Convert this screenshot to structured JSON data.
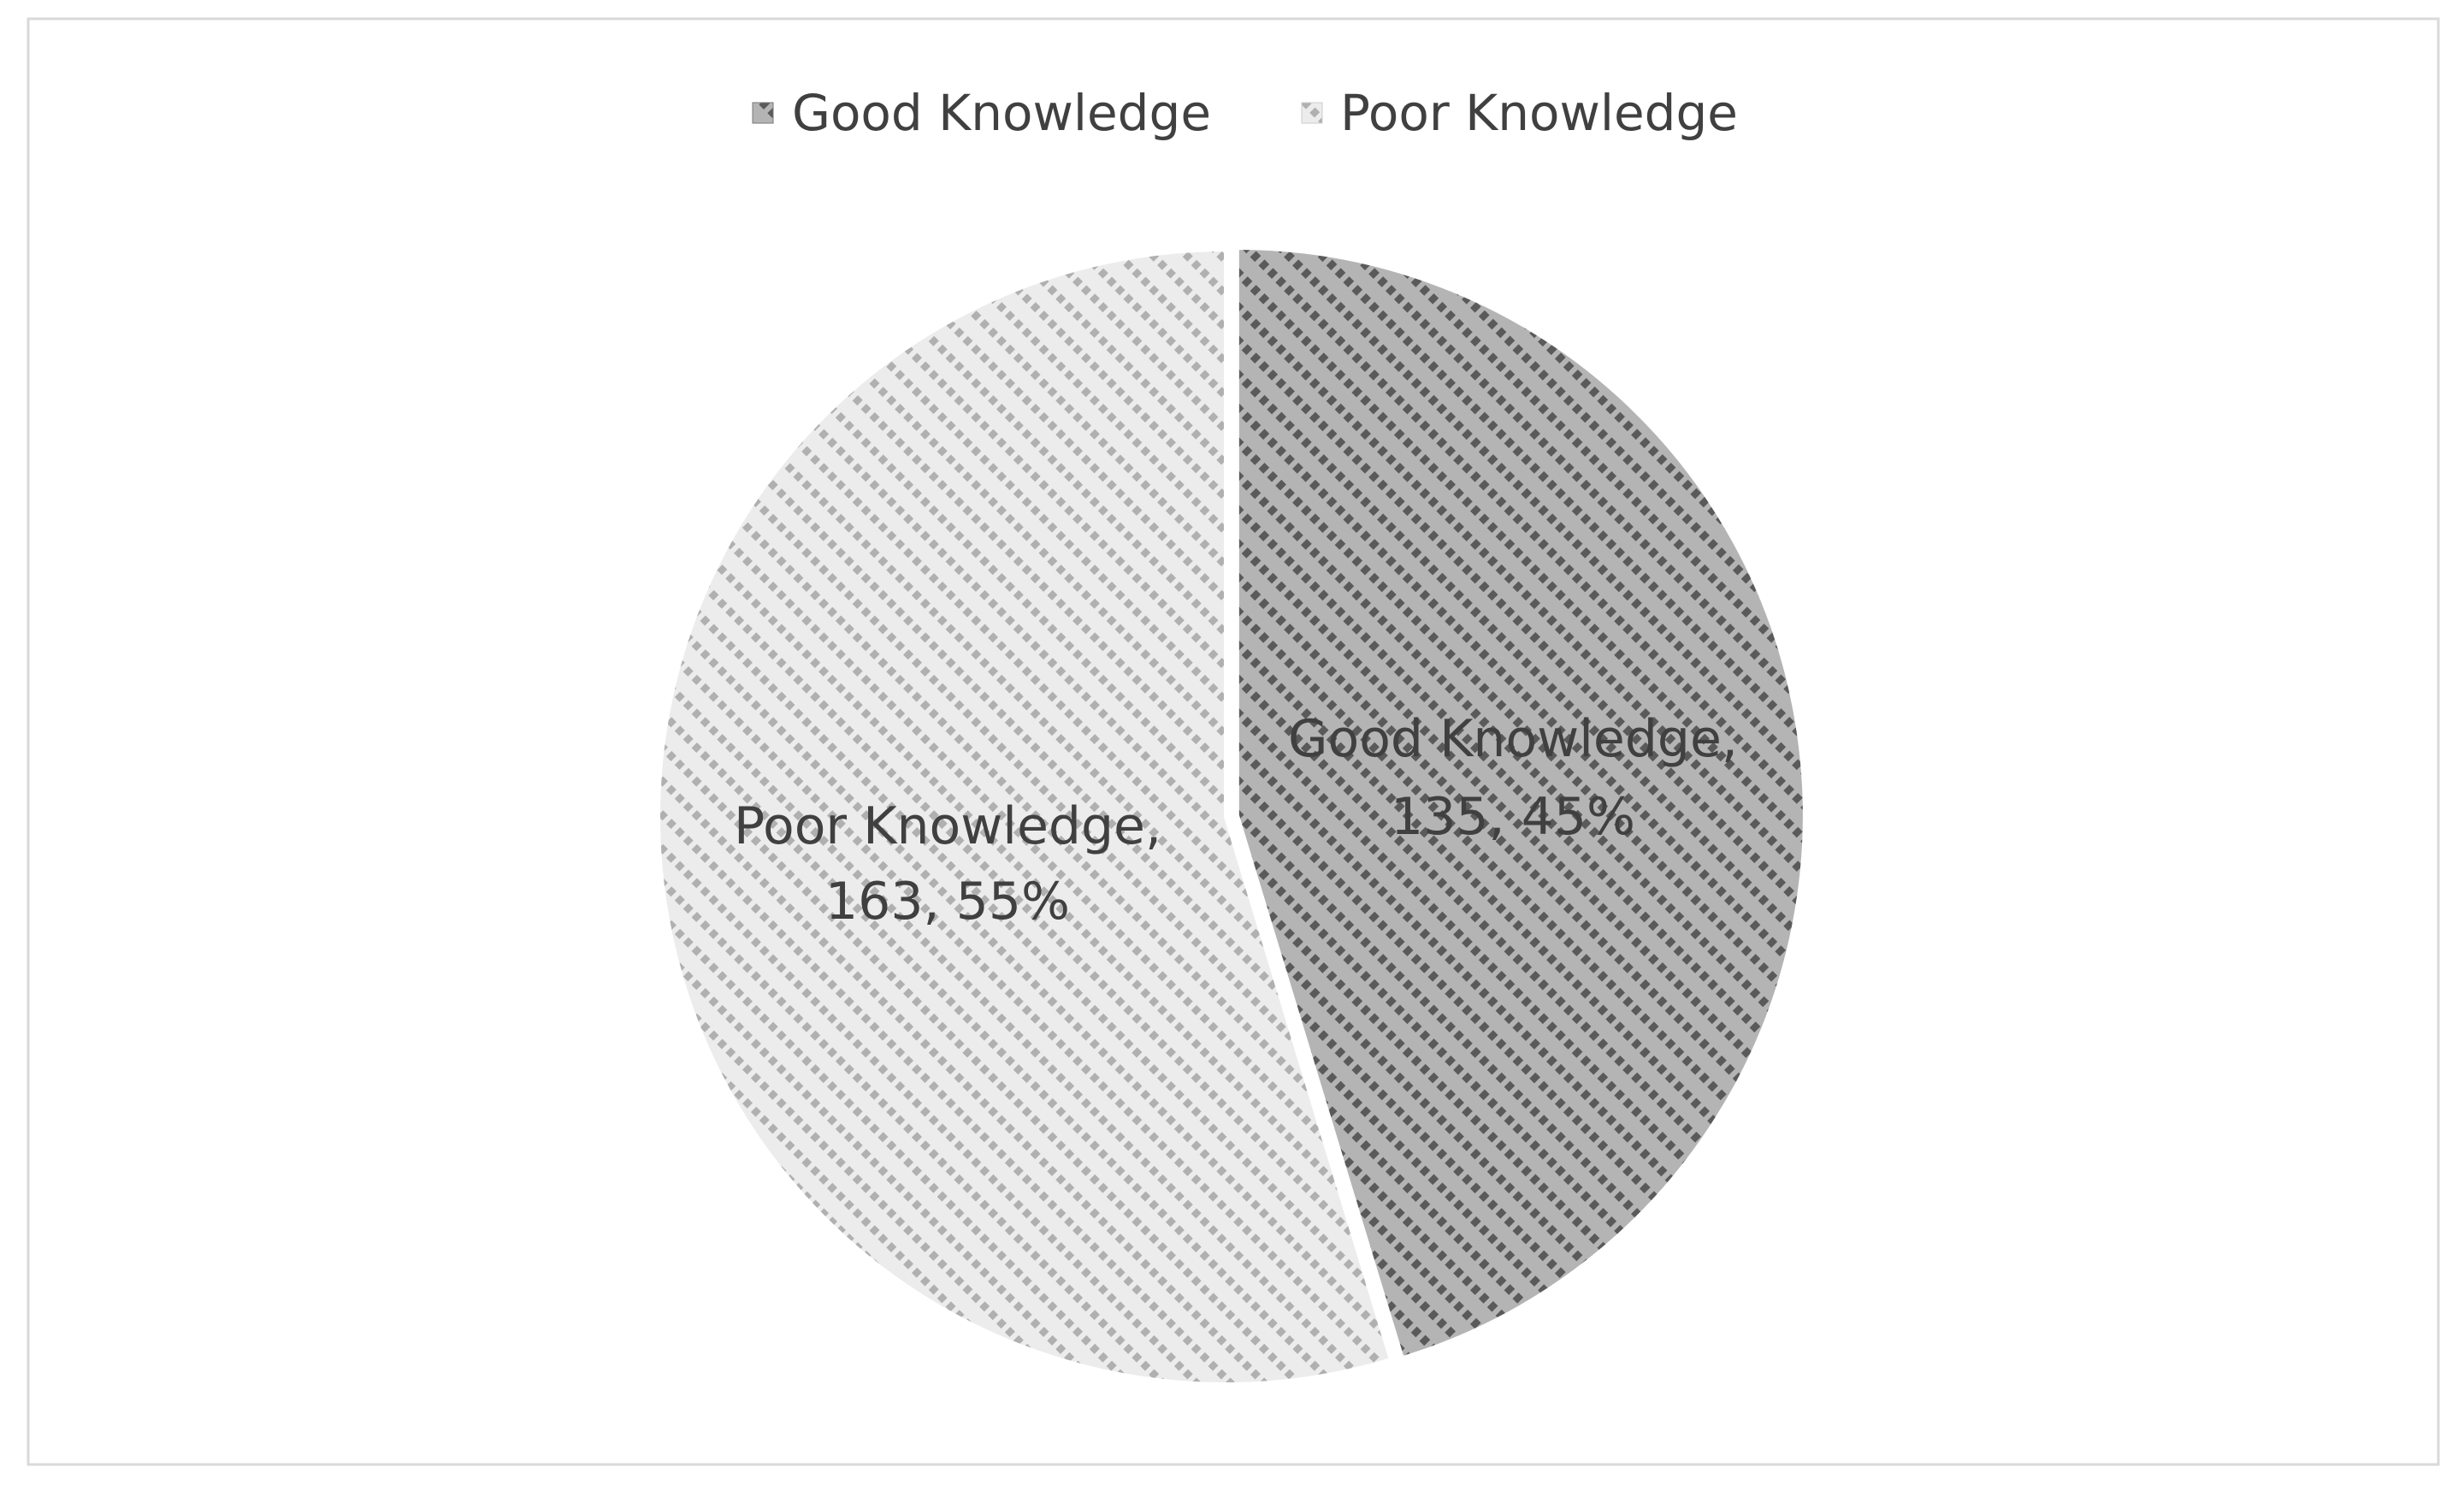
{
  "chart_data": {
    "type": "pie",
    "title": "",
    "legend_position": "top",
    "slices": [
      {
        "name": "Good Knowledge",
        "value": 135,
        "percent": 45,
        "label_line1": "Good Knowledge,",
        "label_line2": "135, 45%",
        "color": "#6e6e6e",
        "pattern": "dark diagonal dashed stripes",
        "exploded": true
      },
      {
        "name": "Poor Knowledge",
        "value": 163,
        "percent": 55,
        "label_line1": "Poor Knowledge,",
        "label_line2": "163, 55%",
        "color": "#c8c8c8",
        "pattern": "light diagonal dashed stripes",
        "exploded": false
      }
    ],
    "legend": [
      "Good Knowledge",
      "Poor Knowledge"
    ]
  }
}
